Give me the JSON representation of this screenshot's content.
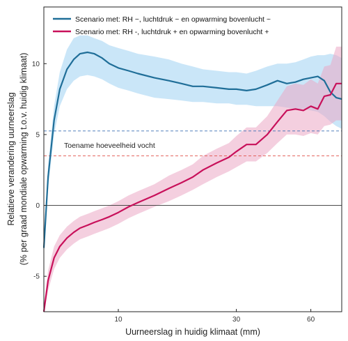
{
  "chart_data": {
    "type": "line",
    "xlabel": "Uurneerslag in huidig klimaat (mm)",
    "ylabel_line1": "Relatieve verandering uurneerslag",
    "ylabel_line2": "(% per graad mondiale opwarming t.o.v. huidig klimaat)",
    "x_scale": "log",
    "xlim": [
      5,
      80
    ],
    "ylim": [
      -7.5,
      14
    ],
    "x_ticks": [
      10,
      30,
      60
    ],
    "y_ticks": [
      -5,
      0,
      5,
      10
    ],
    "grid": false,
    "legend_position": "top-left",
    "series": [
      {
        "name": "Scenario met: RH ~, luchtdruk ~ en opwarming bovenlucht ~",
        "color": "#1f6e98",
        "band_color": "#9fd1f2",
        "x": [
          5.0,
          5.2,
          5.5,
          5.8,
          6.2,
          6.6,
          7.0,
          7.5,
          8.0,
          8.6,
          9.2,
          10.0,
          11.0,
          12.0,
          14.0,
          16.0,
          18.0,
          20.0,
          22.0,
          25.0,
          28.0,
          30.0,
          33.0,
          36.0,
          40.0,
          44.0,
          48.0,
          52.0,
          56.0,
          60.0,
          64.0,
          68.0,
          72.0,
          76.0,
          80.0
        ],
        "y": [
          -3.0,
          2.0,
          6.0,
          8.2,
          9.6,
          10.3,
          10.7,
          10.8,
          10.7,
          10.4,
          10.0,
          9.7,
          9.5,
          9.3,
          9.0,
          8.8,
          8.6,
          8.4,
          8.4,
          8.3,
          8.2,
          8.2,
          8.1,
          8.2,
          8.5,
          8.8,
          8.6,
          8.7,
          8.9,
          9.0,
          9.1,
          8.8,
          8.0,
          7.6,
          7.5
        ],
        "lower": [
          -3.5,
          1.2,
          5.0,
          7.0,
          8.2,
          8.8,
          9.1,
          9.2,
          9.1,
          8.9,
          8.6,
          8.3,
          8.1,
          7.9,
          7.6,
          7.5,
          7.4,
          7.3,
          7.3,
          7.2,
          7.2,
          7.1,
          7.1,
          7.0,
          7.0,
          7.0,
          6.9,
          6.8,
          6.8,
          6.7,
          6.6,
          6.3,
          5.9,
          5.6,
          5.4
        ],
        "upper": [
          -2.5,
          2.8,
          7.0,
          9.4,
          11.0,
          11.8,
          12.0,
          12.0,
          11.8,
          11.6,
          11.3,
          11.1,
          10.9,
          10.7,
          10.5,
          10.3,
          10.0,
          9.8,
          9.6,
          9.5,
          9.4,
          9.4,
          9.3,
          9.5,
          9.8,
          10.0,
          10.0,
          10.1,
          10.3,
          10.5,
          10.6,
          10.6,
          10.7,
          10.6,
          10.4
        ]
      },
      {
        "name": "Scenario met: RH -, luchtdruk + en opwarming bovenlucht +",
        "color": "#c8105a",
        "band_color": "#eba8c4",
        "x": [
          5.0,
          5.2,
          5.5,
          5.8,
          6.2,
          6.6,
          7.0,
          7.5,
          8.0,
          8.6,
          9.2,
          10.0,
          11.0,
          12.0,
          14.0,
          16.0,
          18.0,
          20.0,
          22.0,
          25.0,
          28.0,
          30.0,
          33.0,
          36.0,
          40.0,
          44.0,
          48.0,
          52.0,
          56.0,
          60.0,
          64.0,
          68.0,
          72.0,
          76.0,
          80.0
        ],
        "y": [
          -7.5,
          -5.3,
          -3.7,
          -2.9,
          -2.3,
          -1.9,
          -1.6,
          -1.4,
          -1.2,
          -1.0,
          -0.8,
          -0.5,
          -0.1,
          0.2,
          0.7,
          1.2,
          1.6,
          2.0,
          2.5,
          3.0,
          3.4,
          3.8,
          4.3,
          4.3,
          5.0,
          5.9,
          6.7,
          6.8,
          6.7,
          7.0,
          6.8,
          7.7,
          7.8,
          8.6,
          8.6
        ],
        "lower": [
          -8.0,
          -6.0,
          -4.5,
          -3.7,
          -3.1,
          -2.7,
          -2.4,
          -2.2,
          -2.0,
          -1.8,
          -1.6,
          -1.3,
          -0.9,
          -0.6,
          -0.1,
          0.3,
          0.7,
          1.1,
          1.5,
          2.0,
          2.4,
          2.7,
          3.1,
          3.1,
          3.7,
          4.4,
          5.0,
          5.0,
          4.9,
          5.1,
          5.0,
          5.6,
          5.7,
          6.0,
          6.0
        ],
        "upper": [
          -7.0,
          -4.6,
          -2.9,
          -2.1,
          -1.5,
          -1.1,
          -0.8,
          -0.6,
          -0.4,
          -0.2,
          0.0,
          0.3,
          0.7,
          1.0,
          1.5,
          2.1,
          2.5,
          2.9,
          3.5,
          4.0,
          4.4,
          4.9,
          5.5,
          5.5,
          6.3,
          7.4,
          8.4,
          8.6,
          8.5,
          8.9,
          8.6,
          9.8,
          9.9,
          11.2,
          11.2
        ]
      }
    ],
    "reference_lines": [
      {
        "y": 0,
        "color": "#333333",
        "style": "solid"
      },
      {
        "y": 5.25,
        "color": "#3b6fb5",
        "style": "dashed"
      },
      {
        "y": 3.5,
        "color": "#e0504a",
        "style": "dashed"
      }
    ],
    "annotations": [
      {
        "text": "Toename hoeveelheid vocht",
        "x": 6.3,
        "y": 4.3
      }
    ]
  }
}
